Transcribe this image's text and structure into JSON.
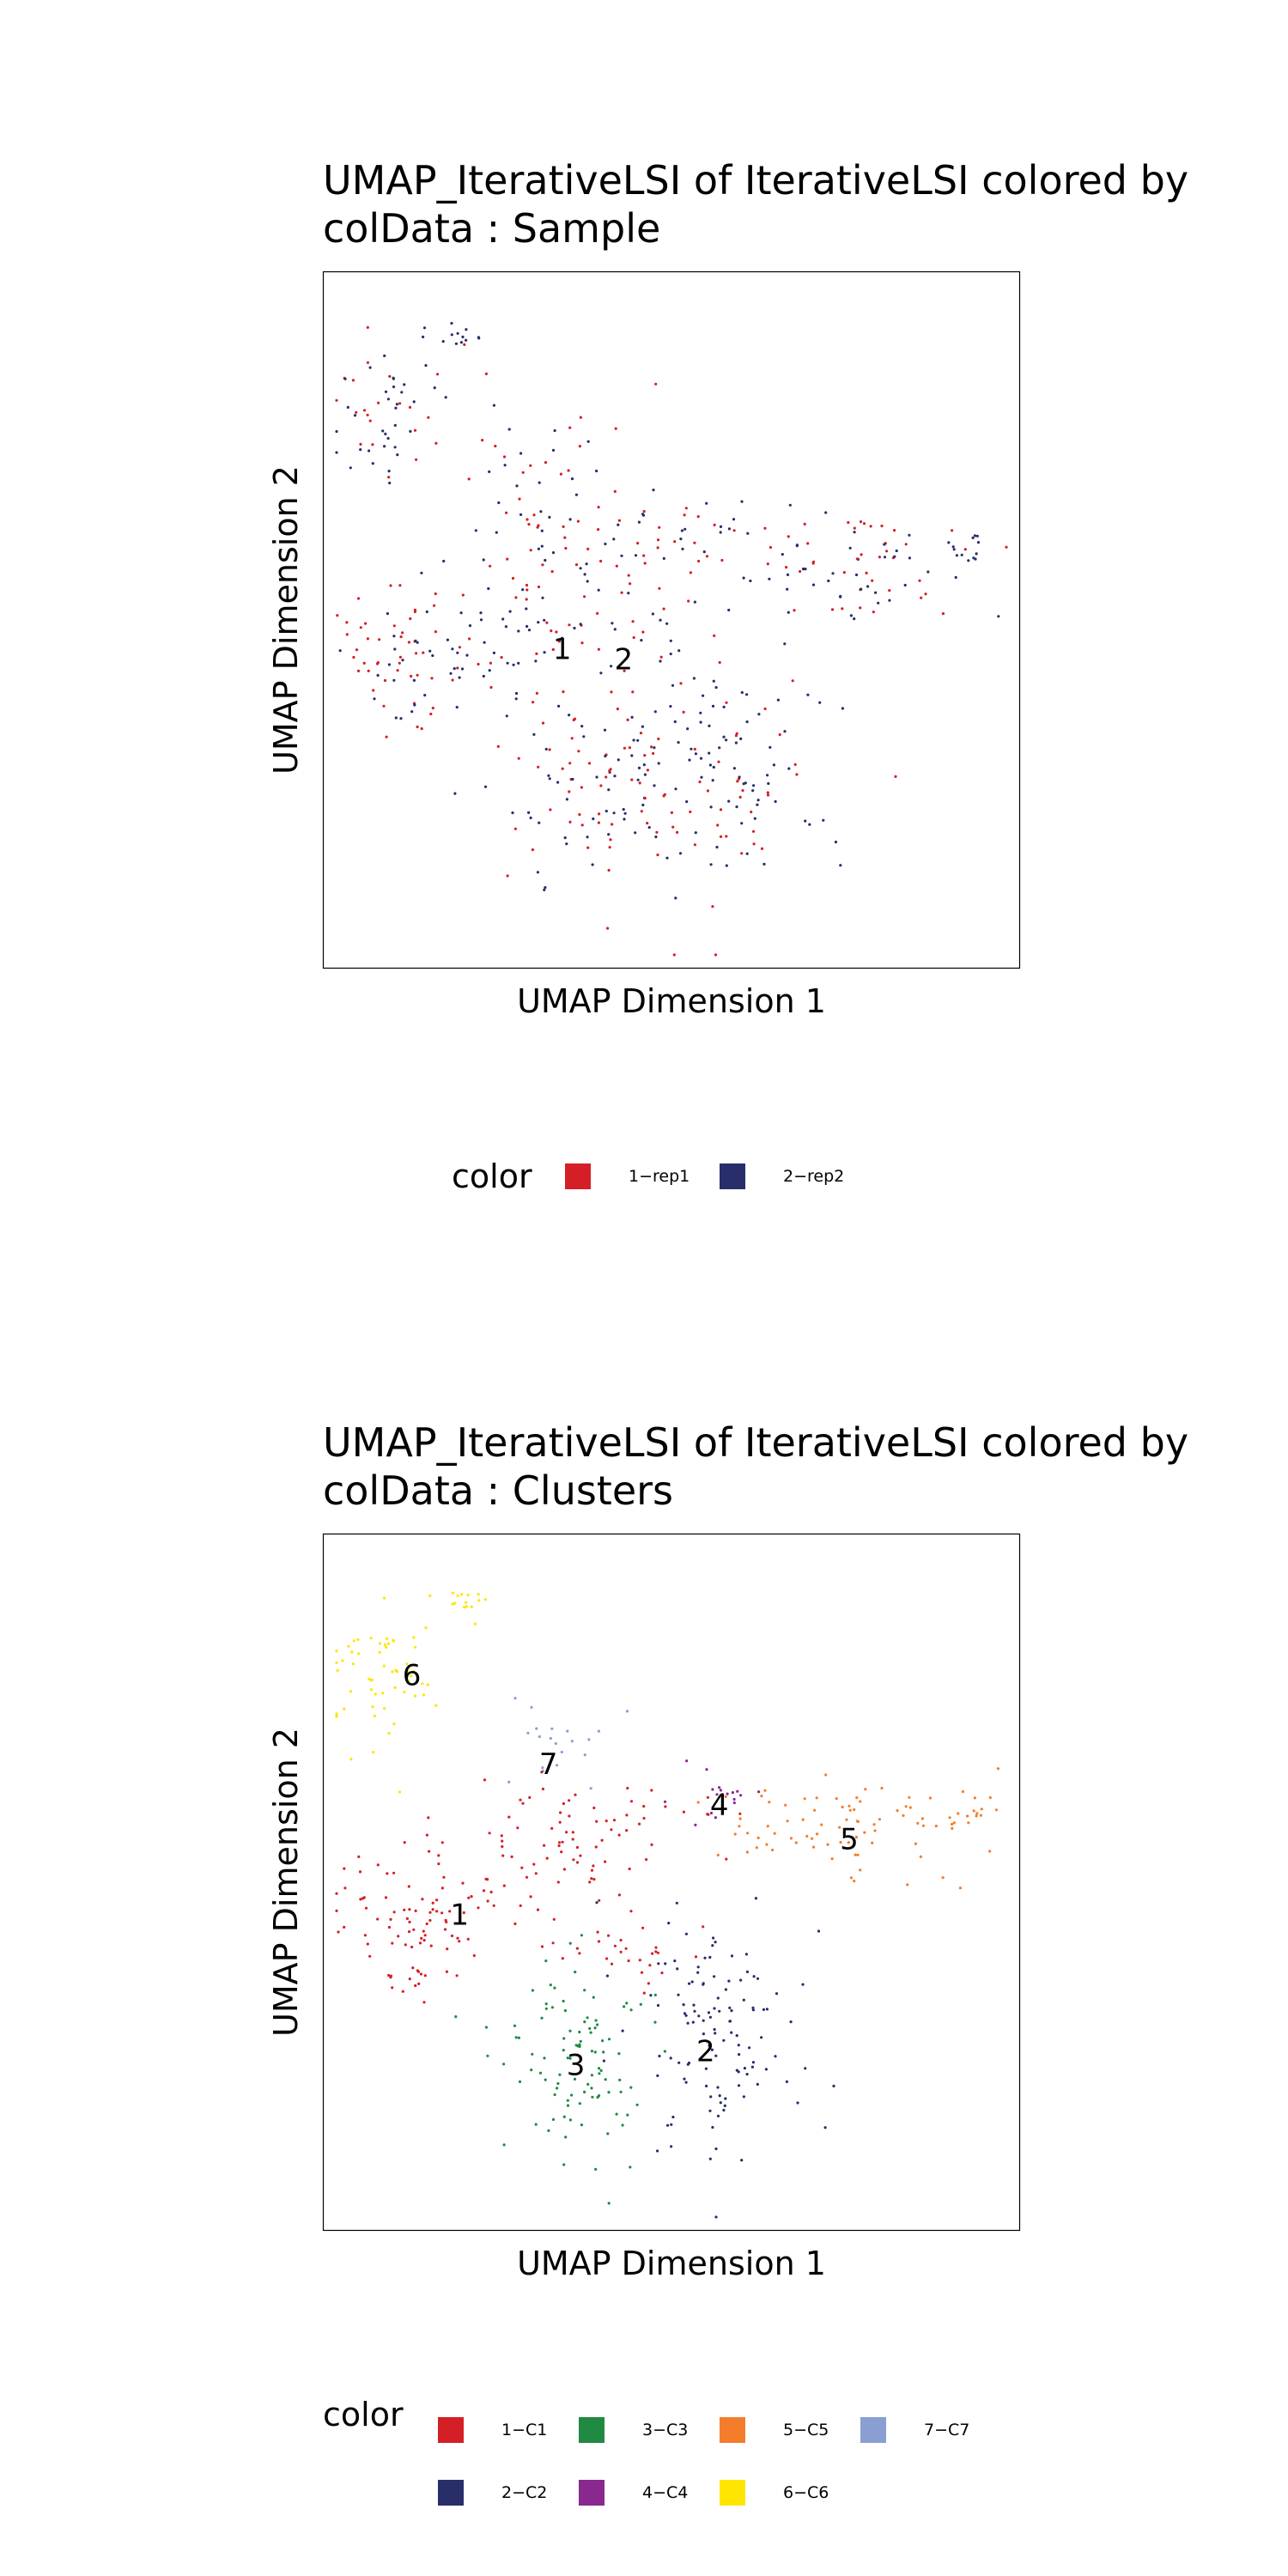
{
  "colors": {
    "rep1": "#D51F26",
    "rep2": "#272E6A",
    "C1": "#D51F26",
    "C2": "#272E6A",
    "C3": "#208A42",
    "C4": "#89288F",
    "C5": "#F47D2B",
    "C6": "#FEE500",
    "C7": "#8A9FD1"
  },
  "charts": [
    {
      "title": "UMAP_IterativeLSI of IterativeLSI  colored by\ncolData :  Sample",
      "xlabel": "UMAP Dimension 1",
      "ylabel": "UMAP Dimension 2",
      "legend_title": "color",
      "legend": [
        {
          "label": "1−rep1",
          "color": "#D51F26"
        },
        {
          "label": "2−rep2",
          "color": "#272E6A"
        }
      ]
    },
    {
      "title": "UMAP_IterativeLSI of IterativeLSI  colored by\ncolData :  Clusters",
      "xlabel": "UMAP Dimension 1",
      "ylabel": "UMAP Dimension 2",
      "legend_title": "color",
      "legend": [
        {
          "label": "1−C1",
          "color": "#D51F26"
        },
        {
          "label": "3−C3",
          "color": "#208A42"
        },
        {
          "label": "5−C5",
          "color": "#F47D2B"
        },
        {
          "label": "7−C7",
          "color": "#8A9FD1"
        },
        {
          "label": "2−C2",
          "color": "#272E6A"
        },
        {
          "label": "4−C4",
          "color": "#89288F"
        },
        {
          "label": "6−C6",
          "color": "#FEE500"
        }
      ]
    }
  ],
  "chart_data": [
    {
      "type": "scatter",
      "title": "UMAP_IterativeLSI of IterativeLSI  colored by colData :  Sample",
      "xlabel": "UMAP Dimension 1",
      "ylabel": "UMAP Dimension 2",
      "xlim": [
        0,
        100
      ],
      "ylim": [
        0,
        100
      ],
      "grid": false,
      "legend_placement": "bottom",
      "point_size": "small",
      "series": [
        {
          "name": "1−rep1",
          "color": "#D51F26"
        },
        {
          "name": "2−rep2",
          "color": "#272E6A"
        }
      ],
      "regions": [
        {
          "center": [
            19,
            91
          ],
          "spread": [
            2,
            1.2
          ],
          "n": 14,
          "mix": [
            0.1,
            0.9
          ]
        },
        {
          "center": [
            8,
            80
          ],
          "spread": [
            4,
            5
          ],
          "n": 55,
          "mix": [
            0.45,
            0.55
          ]
        },
        {
          "center": [
            30,
            63
          ],
          "spread": [
            6,
            8
          ],
          "n": 55,
          "mix": [
            0.6,
            0.4
          ]
        },
        {
          "center": [
            11,
            44
          ],
          "spread": [
            5,
            5
          ],
          "n": 75,
          "mix": [
            0.6,
            0.4
          ]
        },
        {
          "center": [
            25,
            47
          ],
          "spread": [
            6,
            4
          ],
          "n": 40,
          "mix": [
            0.4,
            0.6
          ]
        },
        {
          "center": [
            42,
            50
          ],
          "spread": [
            6,
            6
          ],
          "n": 40,
          "mix": [
            0.5,
            0.5
          ]
        },
        {
          "center": [
            53,
            62
          ],
          "spread": [
            10,
            2.5
          ],
          "n": 40,
          "mix": [
            0.5,
            0.5
          ]
        },
        {
          "center": [
            77,
            58
          ],
          "spread": [
            10,
            4
          ],
          "n": 80,
          "mix": [
            0.45,
            0.55
          ]
        },
        {
          "center": [
            93,
            60
          ],
          "spread": [
            2.5,
            1.2
          ],
          "n": 12,
          "mix": [
            0.1,
            0.9
          ]
        },
        {
          "center": [
            40,
            25
          ],
          "spread": [
            8,
            8
          ],
          "n": 110,
          "mix": [
            0.55,
            0.45
          ]
        },
        {
          "center": [
            57,
            28
          ],
          "spread": [
            8,
            9
          ],
          "n": 120,
          "mix": [
            0.35,
            0.65
          ]
        },
        {
          "center": [
            35,
            70
          ],
          "spread": [
            10,
            8
          ],
          "n": 20,
          "mix": [
            0.5,
            0.5
          ]
        }
      ],
      "labels": [
        {
          "text": "1",
          "x": 34,
          "y": 45.5
        },
        {
          "text": "2",
          "x": 43,
          "y": 44
        }
      ]
    },
    {
      "type": "scatter",
      "title": "UMAP_IterativeLSI of IterativeLSI  colored by colData :  Clusters",
      "xlabel": "UMAP Dimension 1",
      "ylabel": "UMAP Dimension 2",
      "xlim": [
        0,
        100
      ],
      "ylim": [
        0,
        100
      ],
      "grid": false,
      "legend_placement": "bottom",
      "point_size": "small",
      "series": [
        {
          "name": "1−C1",
          "color": "#D51F26"
        },
        {
          "name": "2−C2",
          "color": "#272E6A"
        },
        {
          "name": "3−C3",
          "color": "#208A42"
        },
        {
          "name": "4−C4",
          "color": "#89288F"
        },
        {
          "name": "5−C5",
          "color": "#F47D2B"
        },
        {
          "name": "6−C6",
          "color": "#FEE500"
        },
        {
          "name": "7−C7",
          "color": "#8A9FD1"
        }
      ],
      "regions": [
        {
          "center": [
            19,
            91
          ],
          "spread": [
            2,
            1.2
          ],
          "n": 14,
          "cluster": 6
        },
        {
          "center": [
            8,
            80
          ],
          "spread": [
            4,
            5
          ],
          "n": 60,
          "cluster": 6
        },
        {
          "center": [
            32,
            70
          ],
          "spread": [
            4,
            3
          ],
          "n": 20,
          "cluster": 7
        },
        {
          "center": [
            12,
            44
          ],
          "spread": [
            5,
            6
          ],
          "n": 85,
          "cluster": 1
        },
        {
          "center": [
            30,
            55
          ],
          "spread": [
            8,
            6
          ],
          "n": 70,
          "cluster": 1
        },
        {
          "center": [
            57,
            63
          ],
          "spread": [
            3,
            2
          ],
          "n": 18,
          "cluster": 4
        },
        {
          "center": [
            48,
            60
          ],
          "spread": [
            8,
            3
          ],
          "n": 20,
          "cluster": 1
        },
        {
          "center": [
            77,
            58
          ],
          "spread": [
            10,
            4
          ],
          "n": 80,
          "cluster": 5
        },
        {
          "center": [
            93,
            60
          ],
          "spread": [
            2.5,
            1.2
          ],
          "n": 12,
          "cluster": 5
        },
        {
          "center": [
            36,
            24
          ],
          "spread": [
            6,
            8
          ],
          "n": 100,
          "cluster": 3
        },
        {
          "center": [
            57,
            28
          ],
          "spread": [
            7,
            9
          ],
          "n": 120,
          "cluster": 2
        },
        {
          "center": [
            45,
            40
          ],
          "spread": [
            6,
            4
          ],
          "n": 30,
          "cluster": 1
        }
      ],
      "labels": [
        {
          "text": "6",
          "x": 12,
          "y": 80
        },
        {
          "text": "7",
          "x": 32,
          "y": 67
        },
        {
          "text": "4",
          "x": 57,
          "y": 61
        },
        {
          "text": "5",
          "x": 76,
          "y": 56
        },
        {
          "text": "1",
          "x": 19,
          "y": 45
        },
        {
          "text": "3",
          "x": 36,
          "y": 23
        },
        {
          "text": "2",
          "x": 55,
          "y": 25
        }
      ]
    }
  ]
}
